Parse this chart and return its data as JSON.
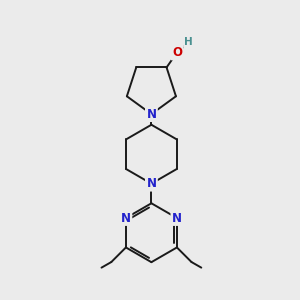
{
  "bg_color": "#ebebeb",
  "bond_color": "#1a1a1a",
  "N_color": "#2222cc",
  "O_color": "#cc0000",
  "H_color": "#4a9090",
  "bond_width": 1.4,
  "font_size_atom": 8.5,
  "fig_w": 3.0,
  "fig_h": 3.0,
  "dpi": 100,
  "xlim": [
    0,
    10
  ],
  "ylim": [
    0,
    10.5
  ]
}
